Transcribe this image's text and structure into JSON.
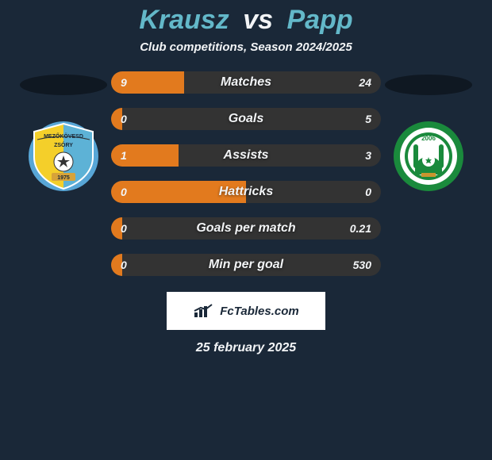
{
  "title": {
    "player_a": "Krausz",
    "vs": "vs",
    "player_b": "Papp",
    "color_a": "#63b8c9",
    "color_vs": "#f2f4f6",
    "color_b": "#63b8c9",
    "fontsize": 34
  },
  "subtitle": {
    "text": "Club competitions, Season 2024/2025",
    "color": "#f2f4f6",
    "fontsize": 15
  },
  "bars": {
    "track_width": 340,
    "track_height": 28,
    "left_color": "#e27a1e",
    "right_color": "#333333",
    "label_color": "#f2f4f6",
    "label_fontsize": 16,
    "value_color": "#f2f4f6",
    "value_fontsize": 14,
    "items": [
      {
        "label": "Matches",
        "left_val": "9",
        "right_val": "24",
        "left_pct": 27
      },
      {
        "label": "Goals",
        "left_val": "0",
        "right_val": "5",
        "left_pct": 4
      },
      {
        "label": "Assists",
        "left_val": "1",
        "right_val": "3",
        "left_pct": 25
      },
      {
        "label": "Hattricks",
        "left_val": "0",
        "right_val": "0",
        "left_pct": 50
      },
      {
        "label": "Goals per match",
        "left_val": "0",
        "right_val": "0.21",
        "left_pct": 4
      },
      {
        "label": "Min per goal",
        "left_val": "0",
        "right_val": "530",
        "left_pct": 4
      }
    ]
  },
  "crest_a": {
    "outer_ring": "#58a6d6",
    "left_color": "#f4cf2a",
    "right_color": "#5db2d6",
    "banner_color": "#d7a339",
    "text": "MEZŐKÖVESD",
    "sub_text": "ZSÓRY",
    "year": "1975"
  },
  "crest_b": {
    "outer_ring": "#1a8a3c",
    "white": "#ffffff",
    "year": "2006",
    "pedestal": "#c9952e"
  },
  "attribution": {
    "logo_color": "#1a2838",
    "text": "FcTables.com"
  },
  "date_line": {
    "text": "25 february 2025",
    "color": "#f2f4f6",
    "fontsize": 16
  },
  "background_color": "#1a2838"
}
